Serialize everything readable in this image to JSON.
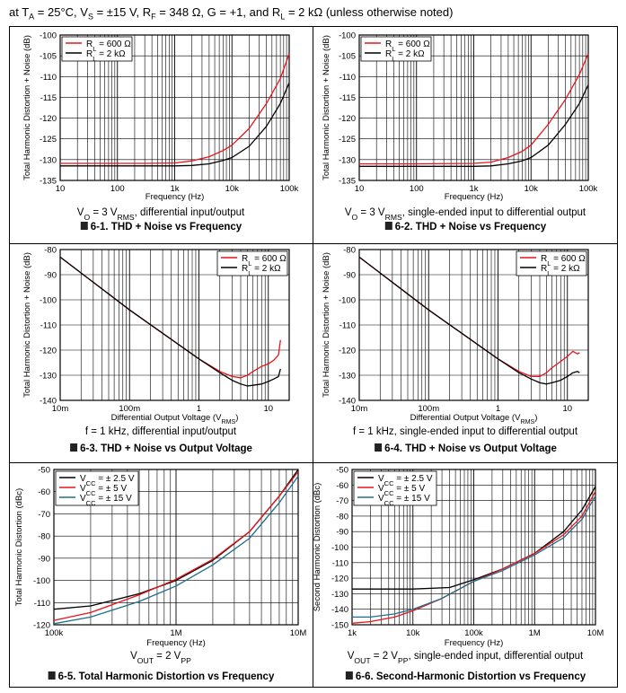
{
  "header": {
    "text": "at T_A = 25°C, V_S = ±15 V, R_F = 348 Ω, G = +1, and R_L = 2 kΩ (unless otherwise noted)"
  },
  "colors": {
    "red": "#e8141b",
    "black": "#000000",
    "teal": "#1f6e8c",
    "grid": "#000000"
  },
  "chart_data": [
    {
      "id": "fig-6-1",
      "type": "line",
      "title": "6-1. THD + Noise vs Frequency",
      "condition": "V_O = 3 V_RMS, differential input/output",
      "xlabel": "Frequency (Hz)",
      "ylabel": "Total Harmonic Distortion + Noise (dB)",
      "xscale": "log",
      "xlim": [
        10,
        100000
      ],
      "ylim": [
        -135,
        -100
      ],
      "xticks": [
        10,
        100,
        1000,
        10000,
        100000
      ],
      "xticklabels": [
        "10",
        "100",
        "1k",
        "10k",
        "100k"
      ],
      "yticks": [
        -100,
        -105,
        -110,
        -115,
        -120,
        -125,
        -130,
        -135
      ],
      "yticklabels": [
        "-100",
        "-105",
        "-110",
        "-115",
        "-120",
        "-125",
        "-130",
        "-135"
      ],
      "legend": "top-left",
      "series": [
        {
          "name": "R_L = 600 Ω",
          "color": "red",
          "x": [
            10,
            100,
            300,
            1000,
            2000,
            4000,
            7000,
            10000,
            20000,
            40000,
            70000,
            100000
          ],
          "y": [
            -130.9,
            -130.9,
            -130.9,
            -130.8,
            -130.3,
            -129.3,
            -127.8,
            -126.5,
            -122.5,
            -116.5,
            -110.5,
            -104.5
          ]
        },
        {
          "name": "R_L = 2 kΩ",
          "color": "black",
          "x": [
            10,
            100,
            1000,
            2000,
            4000,
            7000,
            10000,
            20000,
            40000,
            70000,
            100000
          ],
          "y": [
            -131.5,
            -131.5,
            -131.5,
            -131.4,
            -131.0,
            -130.2,
            -129.5,
            -126.8,
            -122.0,
            -116.5,
            -111.5
          ]
        }
      ]
    },
    {
      "id": "fig-6-2",
      "type": "line",
      "title": "6-2. THD + Noise vs Frequency",
      "condition": "V_O = 3 V_RMS, single-ended input to differential output",
      "xlabel": "Frequency (Hz)",
      "ylabel": "Total Harmonic Distortion + Noise (dB)",
      "xscale": "log",
      "xlim": [
        10,
        100000
      ],
      "ylim": [
        -135,
        -100
      ],
      "xticks": [
        10,
        100,
        1000,
        10000,
        100000
      ],
      "xticklabels": [
        "10",
        "100",
        "1k",
        "10k",
        "100k"
      ],
      "yticks": [
        -100,
        -105,
        -110,
        -115,
        -120,
        -125,
        -130,
        -135
      ],
      "yticklabels": [
        "-100",
        "-105",
        "-110",
        "-115",
        "-120",
        "-125",
        "-130",
        "-135"
      ],
      "legend": "top-left",
      "series": [
        {
          "name": "R_L = 600 Ω",
          "color": "red",
          "x": [
            10,
            100,
            1000,
            2000,
            4000,
            7000,
            10000,
            20000,
            40000,
            70000,
            100000
          ],
          "y": [
            -131.0,
            -131.0,
            -130.9,
            -130.6,
            -129.5,
            -128.0,
            -126.5,
            -121.5,
            -115.5,
            -109.5,
            -104.5
          ]
        },
        {
          "name": "R_L = 2 kΩ",
          "color": "black",
          "x": [
            10,
            100,
            1000,
            2000,
            4000,
            7000,
            10000,
            20000,
            40000,
            70000,
            100000
          ],
          "y": [
            -131.6,
            -131.6,
            -131.6,
            -131.5,
            -131.0,
            -130.3,
            -129.5,
            -126.5,
            -121.5,
            -116.5,
            -112.0
          ]
        }
      ]
    },
    {
      "id": "fig-6-3",
      "type": "line",
      "title": "6-3. THD + Noise vs Output Voltage",
      "condition": "f = 1 kHz, differential input/output",
      "xlabel": "Differential Output Voltage (V_RMS)",
      "ylabel": "Total Harmonic Distortion + Noise (dB)",
      "xscale": "log",
      "xlim": [
        0.01,
        20
      ],
      "ylim": [
        -140,
        -80
      ],
      "xticks": [
        0.01,
        0.1,
        1,
        10
      ],
      "xticklabels": [
        "10m",
        "100m",
        "1",
        "10"
      ],
      "yticks": [
        -80,
        -90,
        -100,
        -110,
        -120,
        -130,
        -140
      ],
      "yticklabels": [
        "-80",
        "-90",
        "-100",
        "-110",
        "-120",
        "-130",
        "-140"
      ],
      "legend": "top-right",
      "series": [
        {
          "name": "R_L = 600 Ω",
          "color": "red",
          "x": [
            0.01,
            0.1,
            1,
            2,
            3,
            4,
            5,
            6,
            8,
            10,
            12,
            14,
            15
          ],
          "y": [
            -83,
            -104,
            -123.5,
            -128.5,
            -130.5,
            -131,
            -130,
            -128.5,
            -126.5,
            -125.5,
            -124,
            -122,
            -116
          ]
        },
        {
          "name": "R_L = 2 kΩ",
          "color": "black",
          "x": [
            0.01,
            0.1,
            1,
            2,
            3,
            4,
            5,
            6,
            8,
            10,
            12,
            14,
            15
          ],
          "y": [
            -83,
            -104,
            -123.5,
            -129,
            -132,
            -133.5,
            -134.3,
            -134,
            -133.5,
            -132.5,
            -131.5,
            -130.5,
            -127.5
          ]
        }
      ]
    },
    {
      "id": "fig-6-4",
      "type": "line",
      "title": "6-4. THD + Noise vs Output Voltage",
      "condition": "f = 1 kHz, single-ended input to differential output",
      "xlabel": "Differential Output Voltage (V_RMS)",
      "ylabel": "Total Harmonic Distortion + Noise (dB)",
      "xscale": "log",
      "xlim": [
        0.01,
        20
      ],
      "ylim": [
        -140,
        -80
      ],
      "xticks": [
        0.01,
        0.1,
        1,
        10
      ],
      "xticklabels": [
        "10m",
        "100m",
        "1",
        "10"
      ],
      "yticks": [
        -80,
        -90,
        -100,
        -110,
        -120,
        -130,
        -140
      ],
      "yticklabels": [
        "-80",
        "-90",
        "-100",
        "-110",
        "-120",
        "-130",
        "-140"
      ],
      "legend": "top-right",
      "series": [
        {
          "name": "R_L = 600 Ω",
          "color": "red",
          "x": [
            0.01,
            0.1,
            1,
            2,
            3,
            4,
            5,
            6,
            8,
            10,
            12,
            14,
            15
          ],
          "y": [
            -83,
            -104,
            -123.5,
            -128.5,
            -130.5,
            -130.5,
            -129,
            -127,
            -124.5,
            -122.5,
            -120.5,
            -121.5,
            -121
          ]
        },
        {
          "name": "R_L = 2 kΩ",
          "color": "black",
          "x": [
            0.01,
            0.1,
            1,
            2,
            3,
            4,
            5,
            6,
            8,
            10,
            12,
            14,
            15
          ],
          "y": [
            -83,
            -104,
            -123.5,
            -129,
            -131.5,
            -133,
            -133.5,
            -133,
            -132,
            -130.5,
            -129,
            -128.5,
            -129
          ]
        }
      ]
    },
    {
      "id": "fig-6-5",
      "type": "line",
      "title": "6-5. Total Harmonic Distortion vs Frequency",
      "condition": "V_OUT = 2 V_PP",
      "xlabel": "Frequency (Hz)",
      "ylabel": "Total Harmonic Distortion (dBc)",
      "xscale": "log",
      "xlim": [
        100000,
        10000000
      ],
      "ylim": [
        -120,
        -50
      ],
      "xticks": [
        100000,
        1000000,
        10000000
      ],
      "xticklabels": [
        "100k",
        "1M",
        "10M"
      ],
      "yticks": [
        -50,
        -60,
        -70,
        -80,
        -90,
        -100,
        -110,
        -120
      ],
      "yticklabels": [
        "-50",
        "-60",
        "-70",
        "-80",
        "-90",
        "-100",
        "-110",
        "-120"
      ],
      "legend": "top-left",
      "series": [
        {
          "name": "V_CC = ± 2.5 V",
          "color": "black",
          "x": [
            100000,
            200000,
            500000,
            1000000,
            2000000,
            4000000,
            7000000,
            10000000
          ],
          "y": [
            -113,
            -111.5,
            -106,
            -100,
            -91,
            -78,
            -62,
            -50
          ]
        },
        {
          "name": "V_CC = ± 5 V",
          "color": "red",
          "x": [
            100000,
            200000,
            500000,
            1000000,
            2000000,
            4000000,
            7000000,
            10000000
          ],
          "y": [
            -118,
            -114.5,
            -106.5,
            -99.5,
            -90.5,
            -78,
            -62,
            -51
          ]
        },
        {
          "name": "V_CC = ± 15 V",
          "color": "teal",
          "x": [
            100000,
            200000,
            500000,
            1000000,
            2000000,
            4000000,
            7000000,
            10000000
          ],
          "y": [
            -119.5,
            -116.5,
            -109.5,
            -102.5,
            -93,
            -81,
            -65,
            -53
          ]
        }
      ]
    },
    {
      "id": "fig-6-6",
      "type": "line",
      "title": "6-6. Second-Harmonic Distortion vs Frequency",
      "condition": "V_OUT = 2 V_PP, single-ended input, differential output",
      "xlabel": "Frequency (Hz)",
      "ylabel": "Second Harmonic Distortion (dBc)",
      "xscale": "log",
      "xlim": [
        1000,
        10000000
      ],
      "ylim": [
        -150,
        -50
      ],
      "xticks": [
        1000,
        10000,
        100000,
        1000000,
        10000000
      ],
      "xticklabels": [
        "1k",
        "10k",
        "100k",
        "1M",
        "10M"
      ],
      "yticks": [
        -50,
        -60,
        -70,
        -80,
        -90,
        -100,
        -110,
        -120,
        -130,
        -140,
        -150
      ],
      "yticklabels": [
        "-50",
        "-60",
        "-70",
        "-80",
        "-90",
        "-100",
        "-110",
        "-120",
        "-130",
        "-140",
        "-150"
      ],
      "legend": "top-left",
      "series": [
        {
          "name": "V_CC = ± 2.5 V",
          "color": "black",
          "x": [
            1000,
            10000,
            40000,
            100000,
            300000,
            1000000,
            3000000,
            6000000,
            10000000
          ],
          "y": [
            -127,
            -127,
            -126,
            -121,
            -114,
            -104,
            -90,
            -76,
            -61
          ]
        },
        {
          "name": "V_CC = ± 5 V",
          "color": "red",
          "x": [
            1000,
            2000,
            5000,
            10000,
            30000,
            100000,
            300000,
            1000000,
            3000000,
            6000000,
            10000000
          ],
          "y": [
            -149,
            -148,
            -145,
            -141,
            -133,
            -122,
            -114,
            -104,
            -92,
            -80,
            -64
          ]
        },
        {
          "name": "V_CC = ± 15 V",
          "color": "teal",
          "x": [
            1000,
            2000,
            5000,
            10000,
            30000,
            100000,
            300000,
            1000000,
            3000000,
            6000000,
            10000000
          ],
          "y": [
            -145,
            -145,
            -143,
            -140,
            -133,
            -122,
            -115,
            -105,
            -94,
            -82,
            -67
          ]
        }
      ]
    }
  ]
}
